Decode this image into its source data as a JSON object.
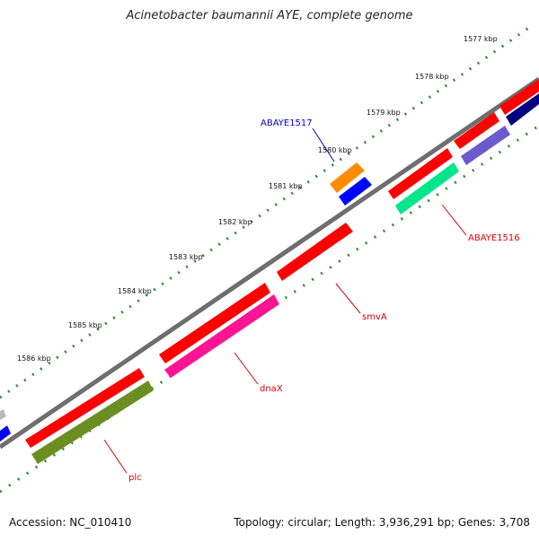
{
  "title": "Acinetobacter baumannii AYE, complete genome",
  "footer": {
    "accession": "Accession: NC_010410",
    "summary": "Topology: circular; Length: 3,936,291 bp; Genes: 3,708"
  },
  "tick_labels": [
    "1577 kbp",
    "1578 kbp",
    "1579 kbp",
    "1580 kbp",
    "1581 kbp",
    "1582 kbp",
    "1583 kbp",
    "1584 kbp",
    "1585 kbp",
    "1586 kbp"
  ],
  "gene_labels": {
    "abaye1517": "ABAYE1517",
    "abaye1516": "ABAYE1516",
    "smva": "smvA",
    "dnax": "dnaX",
    "plc": "plc"
  },
  "colors": {
    "backbone": "#7a7a7a",
    "tick": "#2e8b2e",
    "red": "#ff0000",
    "orange": "#ff8c00",
    "blue": "#0000ff",
    "green": "#00e68a",
    "lavender": "#6a5acd",
    "navy": "#000080",
    "pink": "#ff1493",
    "olive": "#6b8e23",
    "label_red": "#dd0000",
    "label_blue": "#0000cc"
  }
}
